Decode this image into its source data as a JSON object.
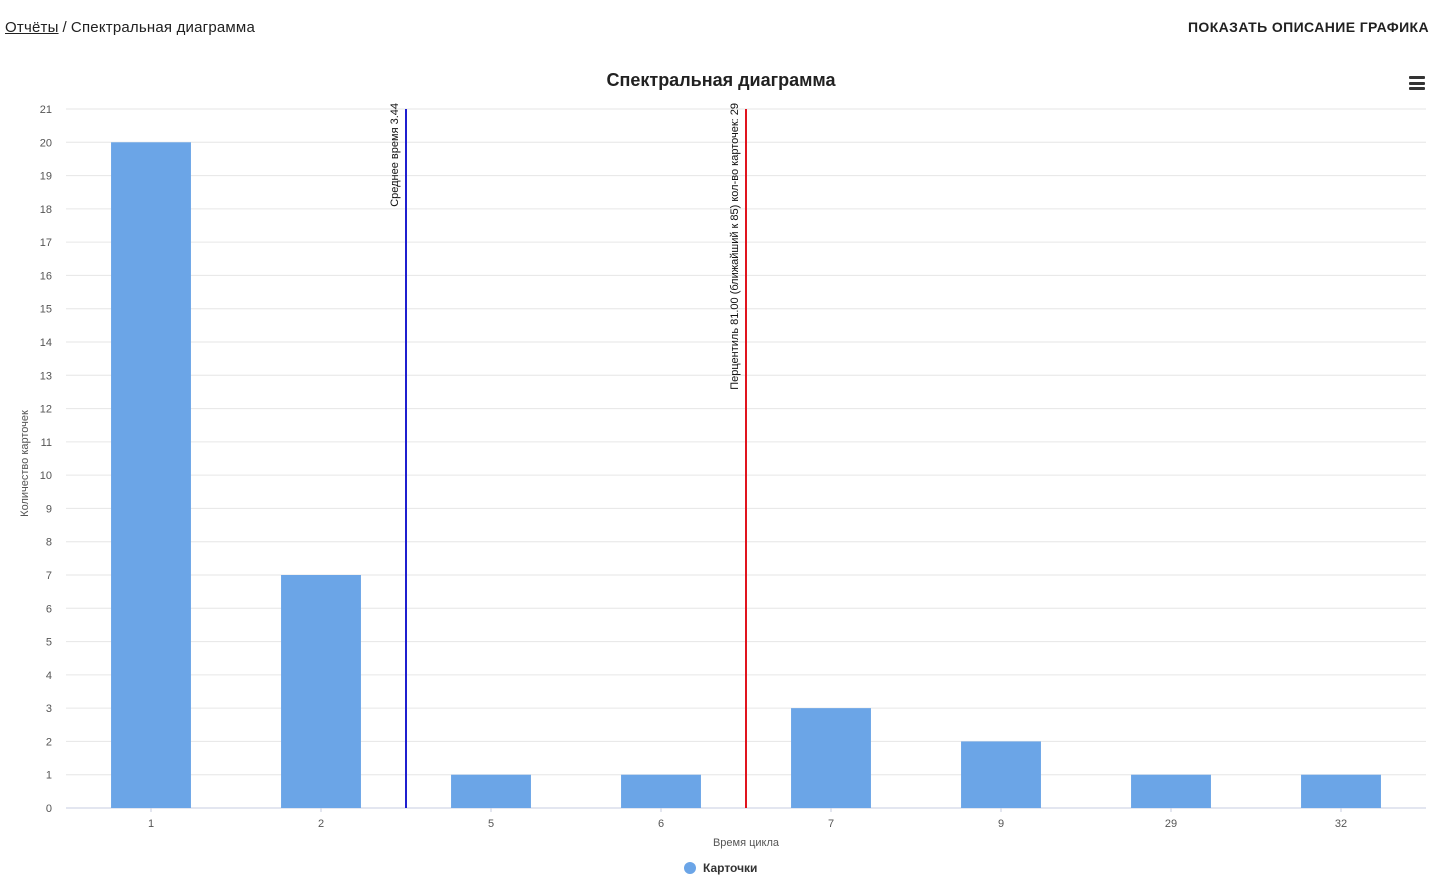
{
  "breadcrumb": {
    "parent": "Отчёты",
    "separator": "/",
    "current": "Спектральная диаграмма"
  },
  "header": {
    "show_description": "ПОКАЗАТЬ ОПИСАНИЕ ГРАФИКА"
  },
  "chart_data": {
    "type": "bar",
    "title": "Спектральная диаграмма",
    "xlabel": "Время цикла",
    "ylabel": "Количество карточек",
    "categories": [
      "1",
      "2",
      "5",
      "6",
      "7",
      "9",
      "29",
      "32"
    ],
    "series": [
      {
        "name": "Карточки",
        "values": [
          20,
          7,
          1,
          1,
          3,
          2,
          1,
          1
        ],
        "color": "#6ba5e7"
      }
    ],
    "ylim": [
      0,
      21
    ],
    "yticks": [
      0,
      1,
      2,
      3,
      4,
      5,
      6,
      7,
      8,
      9,
      10,
      11,
      12,
      13,
      14,
      15,
      16,
      17,
      18,
      19,
      20,
      21
    ],
    "grid": true,
    "legend_position": "bottom-center",
    "plot_lines": [
      {
        "label": "Среднее время 3.44",
        "between_categories": [
          "2",
          "5"
        ],
        "color": "#1f1fcf"
      },
      {
        "label": "Перцентиль 81.00 (ближайший к 85) кол-во карточек: 29",
        "between_categories": [
          "6",
          "7"
        ],
        "color": "#e0141e"
      }
    ]
  }
}
